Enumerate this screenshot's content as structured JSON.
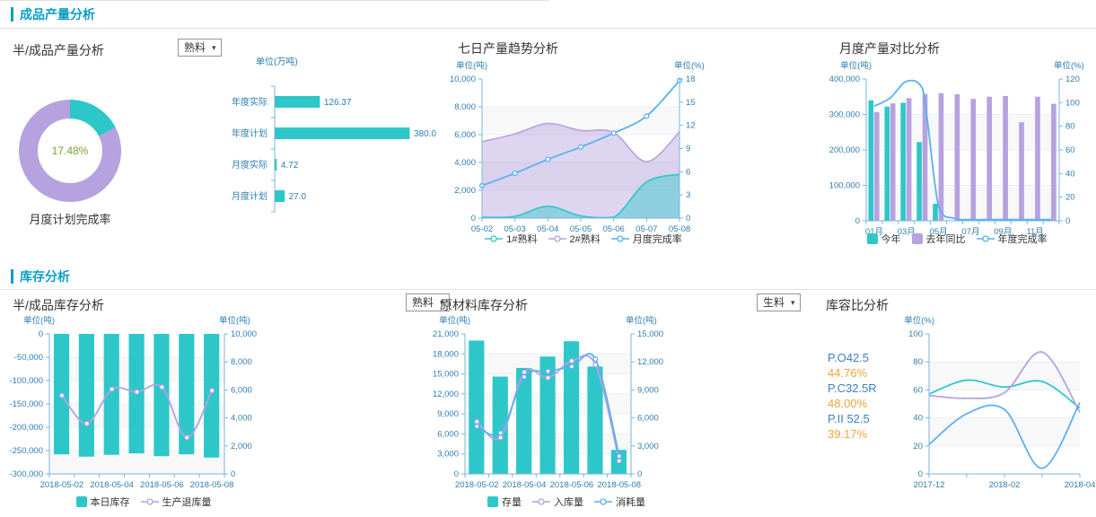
{
  "sections": {
    "production": {
      "title": "成品产量分析"
    },
    "inventory": {
      "title": "库存分析"
    }
  },
  "panels": {
    "product_output": {
      "title": "半/成品产量分析",
      "dropdown": "熟料",
      "donut_label": "月度计划完成率"
    },
    "trend": {
      "title": "七日产量趋势分析"
    },
    "monthly": {
      "title": "月度产量对比分析"
    },
    "stock": {
      "title": "半/成品库存分析",
      "dropdown": "熟料"
    },
    "raw": {
      "title": "原材料库存分析"
    },
    "capacity": {
      "title": "库容比分析",
      "dropdown": "生料",
      "labels": [
        {
          "name": "P.O42.5",
          "value": "44.76%"
        },
        {
          "name": "P.C32.5R",
          "value": "48.00%"
        },
        {
          "name": "P.II 52.5",
          "value": "39.17%"
        }
      ]
    }
  },
  "colors": {
    "teal": "#2ec7c9",
    "purple": "#b6a2de",
    "blue": "#5ab1ef",
    "orange": "#f0a63a",
    "green": "#76a32f",
    "section": "#0a9dc6",
    "axis_text": "#2e7eb3",
    "axis_line": "#79b6de"
  },
  "chart_data": [
    {
      "id": "donut",
      "type": "pie",
      "title": "月度计划完成率",
      "center_label": "17.48%",
      "slices": [
        {
          "name": "完成率",
          "value": 17.48,
          "color": "#2ec7c9"
        },
        {
          "name": "剩余",
          "value": 82.52,
          "color": "#b6a2de"
        }
      ]
    },
    {
      "id": "hbar",
      "type": "bar",
      "orientation": "horizontal",
      "unit": "单位(万吨)",
      "categories": [
        "年度实际",
        "年度计划",
        "月度实际",
        "月度计划"
      ],
      "values": [
        126.37,
        380.0,
        4.72,
        27.0
      ],
      "value_labels": [
        "126.37",
        "380.0",
        "4.72",
        "27.0"
      ],
      "xmax": 380,
      "color": "#2ec7c9"
    },
    {
      "id": "trend",
      "type": "area",
      "title": "七日产量趋势分析",
      "boundary_gap": false,
      "categories": [
        "05-02",
        "05-03",
        "05-04",
        "05-05",
        "05-06",
        "05-07",
        "05-08"
      ],
      "x_show_every": 1,
      "left_axis": {
        "unit": "单位(吨)",
        "min": 0,
        "max": 10000,
        "step": 2000
      },
      "right_axis": {
        "unit": "单位(%)",
        "min": 0,
        "max": 18,
        "step": 3
      },
      "series": [
        {
          "name": "1#熟料",
          "type": "area",
          "axis": "left",
          "color": "#2ec7c9",
          "values": [
            60,
            130,
            850,
            160,
            60,
            2600,
            3150
          ]
        },
        {
          "name": "2#熟料",
          "type": "area",
          "axis": "left",
          "color": "#b6a2de",
          "values": [
            5500,
            6050,
            6800,
            6300,
            6150,
            4050,
            6200
          ]
        },
        {
          "name": "月度完成率",
          "type": "line",
          "axis": "right",
          "color": "#5ab1ef",
          "values": [
            4.2,
            5.8,
            7.6,
            9.2,
            11.0,
            13.2,
            17.8
          ]
        }
      ]
    },
    {
      "id": "monthly",
      "type": "bar",
      "title": "月度产量对比分析",
      "categories": [
        "01月",
        "02月",
        "03月",
        "04月",
        "05月",
        "06月",
        "07月",
        "08月",
        "09月",
        "10月",
        "11月",
        "12月"
      ],
      "x_show_every": 2,
      "left_axis": {
        "unit": "单位(吨)",
        "min": 0,
        "max": 400000,
        "step": 100000
      },
      "right_axis": {
        "unit": "单位(%)",
        "min": 0,
        "max": 120,
        "step": 20
      },
      "series": [
        {
          "name": "今年",
          "type": "bar",
          "axis": "left",
          "color": "#2ec7c9",
          "values": [
            340000,
            322000,
            333000,
            222000,
            48000,
            0,
            0,
            0,
            0,
            0,
            0,
            0
          ]
        },
        {
          "name": "去年同比",
          "type": "bar",
          "axis": "left",
          "color": "#b6a2de",
          "values": [
            307000,
            331000,
            346000,
            358000,
            360000,
            357000,
            344000,
            350000,
            352000,
            278000,
            350000,
            330000
          ]
        },
        {
          "name": "年度完成率",
          "type": "line",
          "axis": "right",
          "color": "#5ab1ef",
          "marker": false,
          "values": [
            97,
            104,
            118,
            112,
            12,
            2,
            1,
            1,
            1,
            1,
            1,
            1
          ]
        }
      ]
    },
    {
      "id": "stock",
      "type": "bar",
      "title": "半/成品库存分析",
      "categories": [
        "2018-05-02",
        "2018-05-03",
        "2018-05-04",
        "2018-05-05",
        "2018-05-06",
        "2018-05-07",
        "2018-05-08"
      ],
      "x_show_every": 2,
      "left_axis": {
        "unit": "单位(吨)",
        "min": -300000,
        "max": 0,
        "step": 50000
      },
      "right_axis": {
        "unit": "单位(吨)",
        "min": 0,
        "max": 10000,
        "step": 2000
      },
      "series": [
        {
          "name": "本日库存",
          "type": "bar",
          "axis": "left",
          "color": "#2ec7c9",
          "values": [
            -258000,
            -263000,
            -259000,
            -256000,
            -262000,
            -258000,
            -265000
          ]
        },
        {
          "name": "生产退库量",
          "type": "line",
          "axis": "right",
          "color": "#b6a2de",
          "values": [
            5600,
            3600,
            6050,
            5850,
            6200,
            2600,
            5950
          ]
        }
      ]
    },
    {
      "id": "raw",
      "type": "bar",
      "title": "原材料库存分析",
      "categories": [
        "2018-05-02",
        "2018-05-03",
        "2018-05-04",
        "2018-05-05",
        "2018-05-06",
        "2018-05-07",
        "2018-05-08"
      ],
      "x_show_every": 2,
      "left_axis": {
        "unit": "单位(吨)",
        "min": 0,
        "max": 21000,
        "step": 3000
      },
      "right_axis": {
        "unit": "单位(吨)",
        "min": 0,
        "max": 15000,
        "step": 3000
      },
      "series": [
        {
          "name": "存量",
          "type": "bar",
          "axis": "left",
          "color": "#2ec7c9",
          "values": [
            20000,
            14600,
            15900,
            17600,
            19900,
            16100,
            3600
          ]
        },
        {
          "name": "入库量",
          "type": "line",
          "axis": "right",
          "color": "#b6a2de",
          "values": [
            5600,
            3900,
            10900,
            10300,
            12100,
            11700,
            1400
          ]
        },
        {
          "name": "消耗量",
          "type": "line",
          "axis": "right",
          "color": "#5ab1ef",
          "values": [
            5100,
            4400,
            10400,
            11000,
            11500,
            12300,
            1900
          ]
        }
      ]
    },
    {
      "id": "capacity",
      "type": "line",
      "title": "库容比分析",
      "boundary_gap": false,
      "categories": [
        "2017-12",
        "2018-01",
        "2018-02",
        "2018-03",
        "2018-04"
      ],
      "x_show_every": 2,
      "left_axis": {
        "unit": "单位(%)",
        "min": 0,
        "max": 100,
        "step": 20
      },
      "series": [
        {
          "name": "P.O42.5",
          "type": "line",
          "axis": "left",
          "color": "#2ec7c9",
          "marker": false,
          "values": [
            57,
            67,
            62,
            66,
            47
          ]
        },
        {
          "name": "P.C32.5R",
          "type": "line",
          "axis": "left",
          "color": "#b6a2de",
          "marker": false,
          "values": [
            56,
            54,
            58,
            87,
            44
          ]
        },
        {
          "name": "P.II 52.5",
          "type": "line",
          "axis": "left",
          "color": "#5ab1ef",
          "marker": false,
          "values": [
            21,
            43,
            46,
            4,
            51
          ]
        }
      ]
    }
  ]
}
